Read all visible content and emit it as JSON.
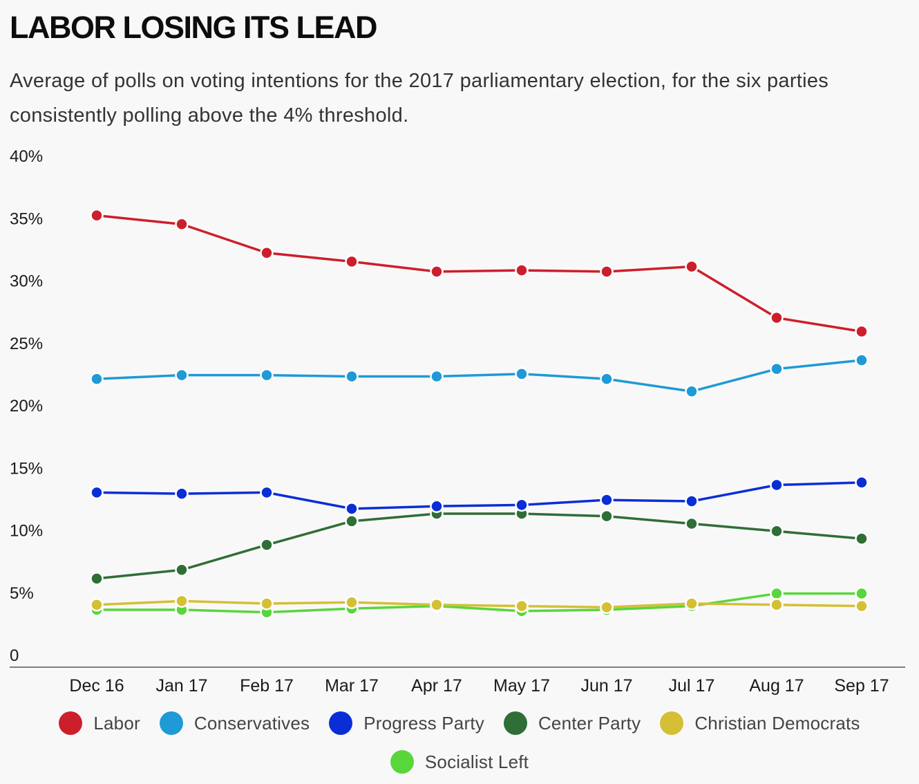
{
  "title": "LABOR LOSING ITS LEAD",
  "subtitle": "Average of polls on voting intentions for the 2017 parliamentary election, for the six parties consistently polling above the 4% threshold.",
  "chart_data": {
    "type": "line",
    "title": "LABOR LOSING ITS LEAD",
    "subtitle": "Average of polls on voting intentions for the 2017 parliamentary election, for the six parties consistently polling above the 4% threshold.",
    "xlabel": "",
    "ylabel": "",
    "categories": [
      "Dec 16",
      "Jan 17",
      "Feb 17",
      "Mar 17",
      "Apr 17",
      "May 17",
      "Jun 17",
      "Jul 17",
      "Aug 17",
      "Sep 17"
    ],
    "y_ticks": [
      "0",
      "5%",
      "10%",
      "15%",
      "20%",
      "25%",
      "30%",
      "35%",
      "40%"
    ],
    "ylim": [
      0,
      40
    ],
    "grid": false,
    "legend_position": "bottom",
    "series": [
      {
        "name": "Labor",
        "color": "#cc1f2b",
        "values": [
          35.2,
          34.5,
          32.2,
          31.5,
          30.7,
          30.8,
          30.7,
          31.1,
          27.0,
          25.9
        ]
      },
      {
        "name": "Conservatives",
        "color": "#1e9ad6",
        "values": [
          22.1,
          22.4,
          22.4,
          22.3,
          22.3,
          22.5,
          22.1,
          21.1,
          22.9,
          23.6
        ]
      },
      {
        "name": "Progress Party",
        "color": "#0a2ed6",
        "values": [
          13.0,
          12.9,
          13.0,
          11.7,
          11.9,
          12.0,
          12.4,
          12.3,
          13.6,
          13.8
        ]
      },
      {
        "name": "Center Party",
        "color": "#2f6e36",
        "values": [
          6.1,
          6.8,
          8.8,
          10.7,
          11.3,
          11.3,
          11.1,
          10.5,
          9.9,
          9.3
        ]
      },
      {
        "name": "Christian Democrats",
        "color": "#d4bf35",
        "values": [
          4.0,
          4.3,
          4.1,
          4.2,
          4.0,
          3.9,
          3.8,
          4.1,
          4.0,
          3.9
        ]
      },
      {
        "name": "Socialist Left",
        "color": "#58d63b",
        "values": [
          3.6,
          3.6,
          3.4,
          3.7,
          3.9,
          3.5,
          3.6,
          3.9,
          4.9,
          4.9
        ]
      }
    ]
  }
}
